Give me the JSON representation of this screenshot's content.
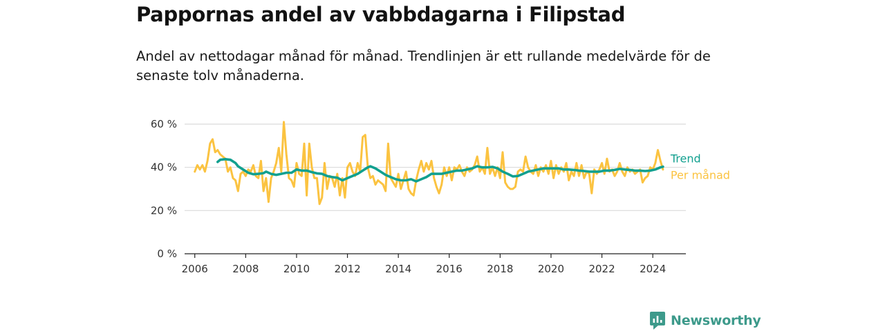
{
  "title": "Pappornas andel av vabbdagarna i Filipstad",
  "subtitle": "Andel av nettodagar månad för månad. Trendlinjen är ett rullande medelvärde för de senaste tolv månaderna.",
  "brand": "Newsworthy",
  "colors": {
    "trend": "#11a08f",
    "monthly": "#fbc341",
    "grid": "#d9d9d9",
    "axis": "#222222",
    "brand": "#3d9a8b"
  },
  "chart_data": {
    "type": "line",
    "title": "Pappornas andel av vabbdagarna i Filipstad",
    "subtitle": "Andel av nettodagar månad för månad. Trendlinjen är ett rullande medelvärde för de senaste tolv månaderna.",
    "xlabel": "",
    "ylabel": "",
    "xlim": [
      2005.6,
      2025.3
    ],
    "ylim": [
      0,
      60
    ],
    "x_ticks": [
      2006,
      2008,
      2010,
      2012,
      2014,
      2016,
      2018,
      2020,
      2022,
      2024
    ],
    "x_tick_labels": [
      "2006",
      "2008",
      "2010",
      "2012",
      "2014",
      "2016",
      "2018",
      "2020",
      "2022",
      "2024"
    ],
    "y_ticks": [
      0,
      20,
      40,
      60
    ],
    "y_tick_labels": [
      "0 %",
      "20 %",
      "40 %",
      "60 %"
    ],
    "grid": true,
    "legend": "direct labels at line ends (right)",
    "series": [
      {
        "name": "Per månad",
        "color": "#fbc341",
        "points": [
          [
            2006.0,
            38
          ],
          [
            2006.1,
            41
          ],
          [
            2006.2,
            39
          ],
          [
            2006.3,
            41
          ],
          [
            2006.4,
            38
          ],
          [
            2006.5,
            43
          ],
          [
            2006.6,
            51
          ],
          [
            2006.7,
            53
          ],
          [
            2006.8,
            47
          ],
          [
            2006.9,
            48
          ],
          [
            2007.0,
            46
          ],
          [
            2007.1,
            45
          ],
          [
            2007.2,
            44
          ],
          [
            2007.3,
            38
          ],
          [
            2007.4,
            40
          ],
          [
            2007.5,
            35
          ],
          [
            2007.6,
            34
          ],
          [
            2007.7,
            29
          ],
          [
            2007.8,
            37
          ],
          [
            2007.9,
            38
          ],
          [
            2008.0,
            36
          ],
          [
            2008.1,
            39
          ],
          [
            2008.2,
            38
          ],
          [
            2008.3,
            41
          ],
          [
            2008.4,
            36
          ],
          [
            2008.5,
            35
          ],
          [
            2008.6,
            43
          ],
          [
            2008.7,
            29
          ],
          [
            2008.8,
            35
          ],
          [
            2008.9,
            24
          ],
          [
            2009.0,
            35
          ],
          [
            2009.1,
            38
          ],
          [
            2009.2,
            42
          ],
          [
            2009.3,
            49
          ],
          [
            2009.4,
            38
          ],
          [
            2009.5,
            61
          ],
          [
            2009.6,
            46
          ],
          [
            2009.7,
            35
          ],
          [
            2009.8,
            34
          ],
          [
            2009.9,
            31
          ],
          [
            2010.0,
            42
          ],
          [
            2010.1,
            37
          ],
          [
            2010.2,
            36
          ],
          [
            2010.3,
            51
          ],
          [
            2010.4,
            27
          ],
          [
            2010.5,
            51
          ],
          [
            2010.6,
            40
          ],
          [
            2010.7,
            35
          ],
          [
            2010.8,
            35
          ],
          [
            2010.9,
            23
          ],
          [
            2011.0,
            26
          ],
          [
            2011.1,
            42
          ],
          [
            2011.2,
            30
          ],
          [
            2011.3,
            36
          ],
          [
            2011.4,
            35
          ],
          [
            2011.5,
            31
          ],
          [
            2011.6,
            37
          ],
          [
            2011.7,
            27
          ],
          [
            2011.8,
            35
          ],
          [
            2011.9,
            26
          ],
          [
            2012.0,
            40
          ],
          [
            2012.1,
            42
          ],
          [
            2012.2,
            38
          ],
          [
            2012.3,
            36
          ],
          [
            2012.4,
            42
          ],
          [
            2012.5,
            38
          ],
          [
            2012.6,
            54
          ],
          [
            2012.7,
            55
          ],
          [
            2012.8,
            40
          ],
          [
            2012.9,
            35
          ],
          [
            2013.0,
            36
          ],
          [
            2013.1,
            32
          ],
          [
            2013.2,
            34
          ],
          [
            2013.3,
            33
          ],
          [
            2013.4,
            32
          ],
          [
            2013.5,
            29
          ],
          [
            2013.6,
            51
          ],
          [
            2013.7,
            35
          ],
          [
            2013.8,
            33
          ],
          [
            2013.9,
            31
          ],
          [
            2014.0,
            37
          ],
          [
            2014.1,
            30
          ],
          [
            2014.2,
            34
          ],
          [
            2014.3,
            38
          ],
          [
            2014.4,
            30
          ],
          [
            2014.5,
            28
          ],
          [
            2014.6,
            27
          ],
          [
            2014.7,
            34
          ],
          [
            2014.8,
            39
          ],
          [
            2014.9,
            43
          ],
          [
            2015.0,
            38
          ],
          [
            2015.1,
            42
          ],
          [
            2015.2,
            39
          ],
          [
            2015.3,
            43
          ],
          [
            2015.4,
            35
          ],
          [
            2015.5,
            31
          ],
          [
            2015.6,
            28
          ],
          [
            2015.7,
            32
          ],
          [
            2015.8,
            40
          ],
          [
            2015.9,
            36
          ],
          [
            2016.0,
            40
          ],
          [
            2016.1,
            34
          ],
          [
            2016.2,
            40
          ],
          [
            2016.3,
            39
          ],
          [
            2016.4,
            41
          ],
          [
            2016.5,
            38
          ],
          [
            2016.6,
            36
          ],
          [
            2016.7,
            40
          ],
          [
            2016.8,
            38
          ],
          [
            2016.9,
            39
          ],
          [
            2017.0,
            41
          ],
          [
            2017.1,
            45
          ],
          [
            2017.2,
            38
          ],
          [
            2017.3,
            40
          ],
          [
            2017.4,
            37
          ],
          [
            2017.5,
            49
          ],
          [
            2017.6,
            37
          ],
          [
            2017.7,
            40
          ],
          [
            2017.8,
            36
          ],
          [
            2017.9,
            40
          ],
          [
            2018.0,
            35
          ],
          [
            2018.1,
            47
          ],
          [
            2018.2,
            33
          ],
          [
            2018.3,
            31
          ],
          [
            2018.4,
            30
          ],
          [
            2018.5,
            30
          ],
          [
            2018.6,
            31
          ],
          [
            2018.7,
            38
          ],
          [
            2018.8,
            39
          ],
          [
            2018.9,
            38
          ],
          [
            2019.0,
            45
          ],
          [
            2019.1,
            40
          ],
          [
            2019.2,
            38
          ],
          [
            2019.3,
            37
          ],
          [
            2019.4,
            41
          ],
          [
            2019.5,
            36
          ],
          [
            2019.6,
            40
          ],
          [
            2019.7,
            38
          ],
          [
            2019.8,
            41
          ],
          [
            2019.9,
            37
          ],
          [
            2020.0,
            43
          ],
          [
            2020.1,
            35
          ],
          [
            2020.2,
            41
          ],
          [
            2020.3,
            37
          ],
          [
            2020.4,
            40
          ],
          [
            2020.5,
            38
          ],
          [
            2020.6,
            42
          ],
          [
            2020.7,
            34
          ],
          [
            2020.8,
            38
          ],
          [
            2020.9,
            36
          ],
          [
            2021.0,
            42
          ],
          [
            2021.1,
            36
          ],
          [
            2021.2,
            41
          ],
          [
            2021.3,
            35
          ],
          [
            2021.4,
            38
          ],
          [
            2021.5,
            37
          ],
          [
            2021.6,
            28
          ],
          [
            2021.7,
            39
          ],
          [
            2021.8,
            37
          ],
          [
            2021.9,
            39
          ],
          [
            2022.0,
            42
          ],
          [
            2022.1,
            37
          ],
          [
            2022.2,
            44
          ],
          [
            2022.3,
            38
          ],
          [
            2022.4,
            39
          ],
          [
            2022.5,
            36
          ],
          [
            2022.6,
            38
          ],
          [
            2022.7,
            42
          ],
          [
            2022.8,
            38
          ],
          [
            2022.9,
            36
          ],
          [
            2023.0,
            40
          ],
          [
            2023.1,
            38
          ],
          [
            2023.2,
            39
          ],
          [
            2023.3,
            37
          ],
          [
            2023.4,
            38
          ],
          [
            2023.5,
            39
          ],
          [
            2023.6,
            33
          ],
          [
            2023.7,
            35
          ],
          [
            2023.8,
            36
          ],
          [
            2023.9,
            40
          ],
          [
            2024.0,
            39
          ],
          [
            2024.1,
            42
          ],
          [
            2024.2,
            48
          ],
          [
            2024.3,
            43
          ],
          [
            2024.4,
            39
          ]
        ]
      },
      {
        "name": "Trend",
        "color": "#11a08f",
        "points": [
          [
            2006.9,
            42.5
          ],
          [
            2007.0,
            43.5
          ],
          [
            2007.2,
            43.8
          ],
          [
            2007.4,
            43.5
          ],
          [
            2007.6,
            42.0
          ],
          [
            2007.7,
            40.5
          ],
          [
            2007.9,
            39.0
          ],
          [
            2008.1,
            37.5
          ],
          [
            2008.3,
            36.8
          ],
          [
            2008.5,
            37.0
          ],
          [
            2008.7,
            37.3
          ],
          [
            2008.8,
            38.0
          ],
          [
            2009.0,
            37.0
          ],
          [
            2009.2,
            36.5
          ],
          [
            2009.4,
            37.0
          ],
          [
            2009.6,
            37.5
          ],
          [
            2009.8,
            37.5
          ],
          [
            2010.0,
            39.0
          ],
          [
            2010.2,
            38.5
          ],
          [
            2010.4,
            38.5
          ],
          [
            2010.6,
            37.8
          ],
          [
            2010.8,
            37.2
          ],
          [
            2011.0,
            37.0
          ],
          [
            2011.2,
            36.0
          ],
          [
            2011.4,
            35.5
          ],
          [
            2011.6,
            35.2
          ],
          [
            2011.8,
            34.0
          ],
          [
            2012.0,
            35.0
          ],
          [
            2012.2,
            36.0
          ],
          [
            2012.4,
            37.0
          ],
          [
            2012.6,
            38.5
          ],
          [
            2012.8,
            40.0
          ],
          [
            2012.9,
            40.5
          ],
          [
            2013.1,
            39.5
          ],
          [
            2013.3,
            38.0
          ],
          [
            2013.5,
            36.5
          ],
          [
            2013.7,
            35.5
          ],
          [
            2013.9,
            34.5
          ],
          [
            2014.1,
            34.0
          ],
          [
            2014.3,
            34.0
          ],
          [
            2014.5,
            34.5
          ],
          [
            2014.7,
            33.5
          ],
          [
            2014.9,
            34.5
          ],
          [
            2015.1,
            35.5
          ],
          [
            2015.3,
            37.0
          ],
          [
            2015.5,
            37.0
          ],
          [
            2015.7,
            37.0
          ],
          [
            2015.9,
            37.5
          ],
          [
            2016.1,
            38.0
          ],
          [
            2016.3,
            38.5
          ],
          [
            2016.5,
            38.5
          ],
          [
            2016.7,
            39.0
          ],
          [
            2016.9,
            39.5
          ],
          [
            2017.1,
            40.5
          ],
          [
            2017.3,
            40.0
          ],
          [
            2017.5,
            40.0
          ],
          [
            2017.7,
            40.2
          ],
          [
            2017.9,
            39.5
          ],
          [
            2018.1,
            38.0
          ],
          [
            2018.3,
            37.0
          ],
          [
            2018.5,
            35.8
          ],
          [
            2018.7,
            36.0
          ],
          [
            2018.9,
            37.0
          ],
          [
            2019.1,
            38.0
          ],
          [
            2019.3,
            38.5
          ],
          [
            2019.5,
            39.0
          ],
          [
            2019.7,
            39.5
          ],
          [
            2019.9,
            39.5
          ],
          [
            2020.1,
            39.5
          ],
          [
            2020.3,
            39.5
          ],
          [
            2020.5,
            39.0
          ],
          [
            2020.7,
            39.0
          ],
          [
            2020.9,
            38.8
          ],
          [
            2021.1,
            38.5
          ],
          [
            2021.3,
            38.3
          ],
          [
            2021.5,
            38.0
          ],
          [
            2021.7,
            38.0
          ],
          [
            2021.9,
            38.0
          ],
          [
            2022.1,
            38.5
          ],
          [
            2022.3,
            38.5
          ],
          [
            2022.5,
            38.8
          ],
          [
            2022.7,
            39.3
          ],
          [
            2022.9,
            39.0
          ],
          [
            2023.1,
            38.8
          ],
          [
            2023.3,
            38.5
          ],
          [
            2023.5,
            38.5
          ],
          [
            2023.7,
            38.3
          ],
          [
            2023.9,
            38.5
          ],
          [
            2024.1,
            39.0
          ],
          [
            2024.3,
            40.0
          ],
          [
            2024.4,
            40.3
          ]
        ]
      }
    ]
  }
}
